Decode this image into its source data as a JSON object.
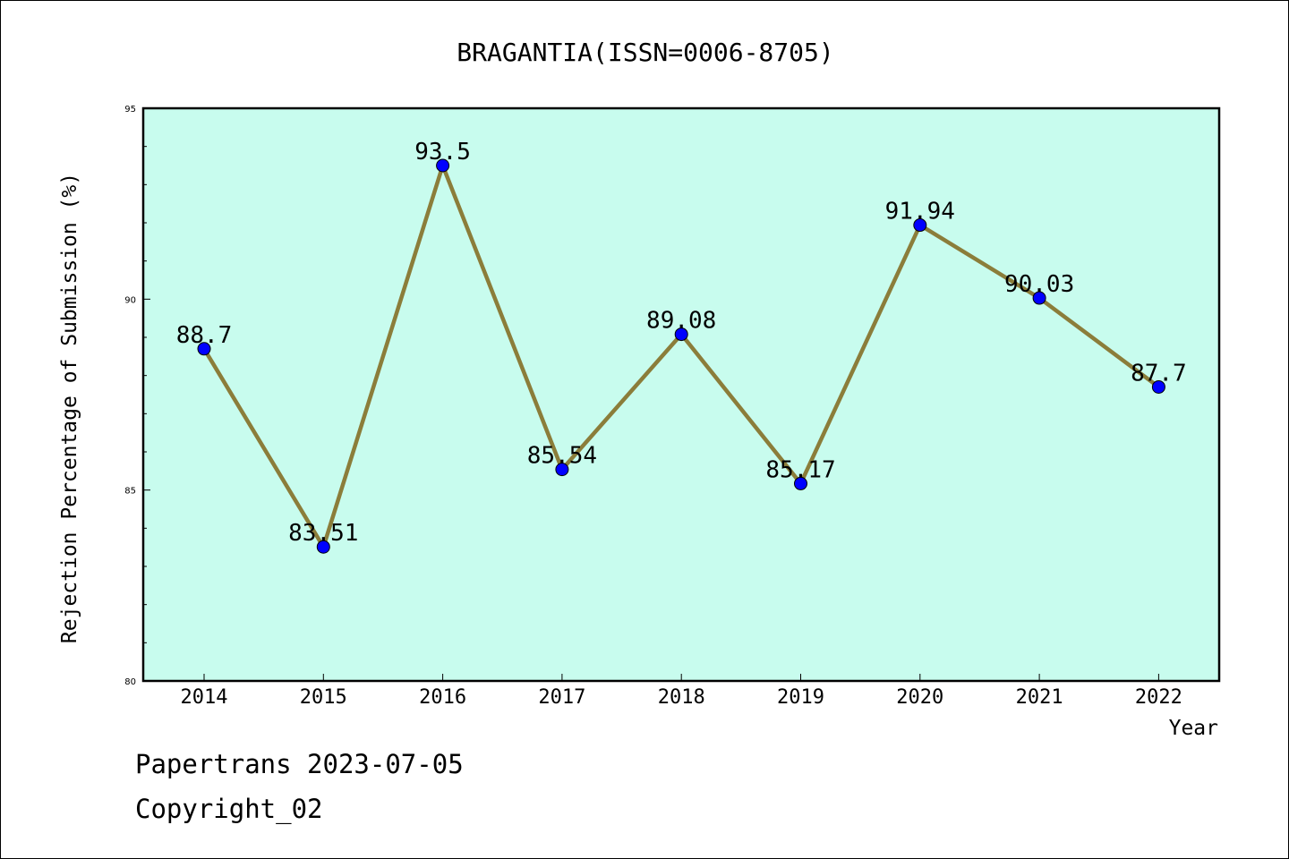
{
  "chart_data": {
    "type": "line",
    "title": "BRAGANTIA(ISSN=0006-8705)",
    "xlabel": "Year",
    "ylabel": "Rejection Percentage of Submission (%)",
    "categories": [
      "2014",
      "2015",
      "2016",
      "2017",
      "2018",
      "2019",
      "2020",
      "2021",
      "2022"
    ],
    "values": [
      88.7,
      83.51,
      93.5,
      85.54,
      89.08,
      85.17,
      91.94,
      90.03,
      87.7
    ],
    "data_labels": [
      "88.7",
      "83.51",
      "93.5",
      "85.54",
      "89.08",
      "85.17",
      "91.94",
      "90.03",
      "87.7"
    ],
    "ylim": [
      80,
      95
    ],
    "y_ticks": [
      "80",
      "85",
      "90",
      "95"
    ],
    "grid": false,
    "colors": {
      "plot_background": "#c8fcee",
      "line": "#8b7d3a",
      "marker": "#0000ff"
    }
  },
  "footer": {
    "line1": "Papertrans 2023-07-05",
    "line2": "Copyright_02"
  }
}
